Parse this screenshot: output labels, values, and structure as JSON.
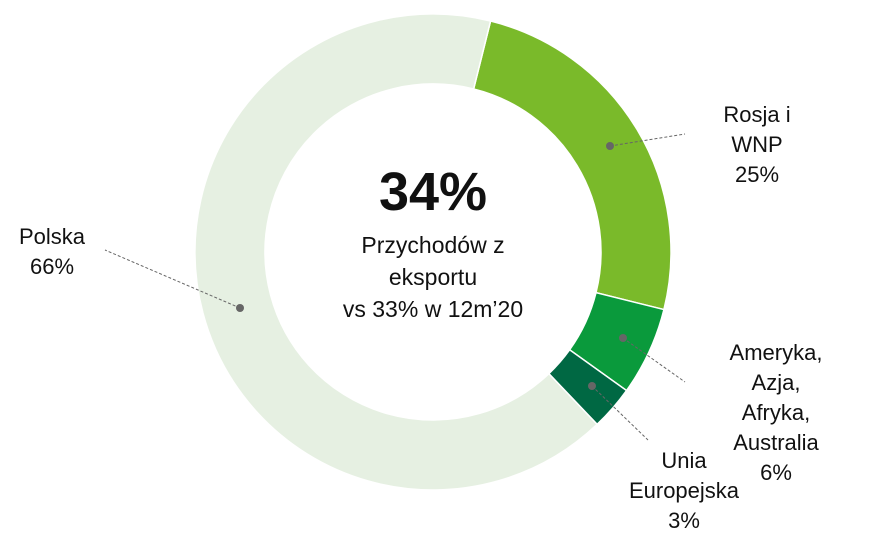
{
  "chart_data": {
    "type": "donut",
    "categories": [
      "Rosja i WNP",
      "Ameryka, Azja,\nAfryka, Australia",
      "Unia\nEuropejska",
      "Polska"
    ],
    "values": [
      25,
      6,
      3,
      66
    ],
    "value_labels": [
      "25%",
      "6%",
      "3%",
      "66%"
    ],
    "colors": [
      "#7aba2a",
      "#0a9a3c",
      "#006843",
      "#e6f0e2"
    ],
    "center_label": "34%",
    "center_text": [
      "Przychodów z",
      "eksportu",
      "vs 33% w 12m’20"
    ]
  }
}
